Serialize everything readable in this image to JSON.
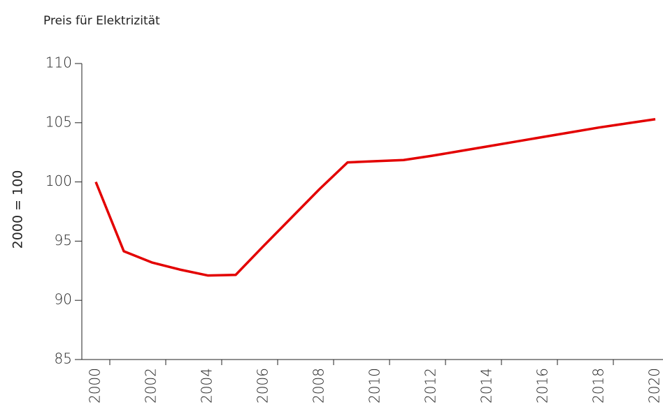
{
  "chart_data": {
    "type": "line",
    "title": "Preis für Elektrizität",
    "y_label": "2000 = 100",
    "categories": [
      "2000",
      null,
      "2002",
      null,
      "2004",
      null,
      "2006",
      null,
      "2008",
      null,
      "2010",
      null,
      "2012",
      null,
      "2014",
      null,
      "2016",
      null,
      "2018",
      null,
      "2020"
    ],
    "series": [
      {
        "name": null,
        "color": "#e30000",
        "values": [
          100,
          94.15,
          93.2,
          92.6,
          92.1,
          92.15,
          94.6,
          97.0,
          99.4,
          101.65,
          101.75,
          101.85,
          102.2,
          102.6,
          103.0,
          103.4,
          103.8,
          104.2,
          104.6,
          104.95,
          105.3
        ]
      }
    ],
    "ylim": [
      85,
      110
    ],
    "yticks": [
      85,
      90,
      95,
      100,
      105,
      110
    ],
    "grid": false
  }
}
